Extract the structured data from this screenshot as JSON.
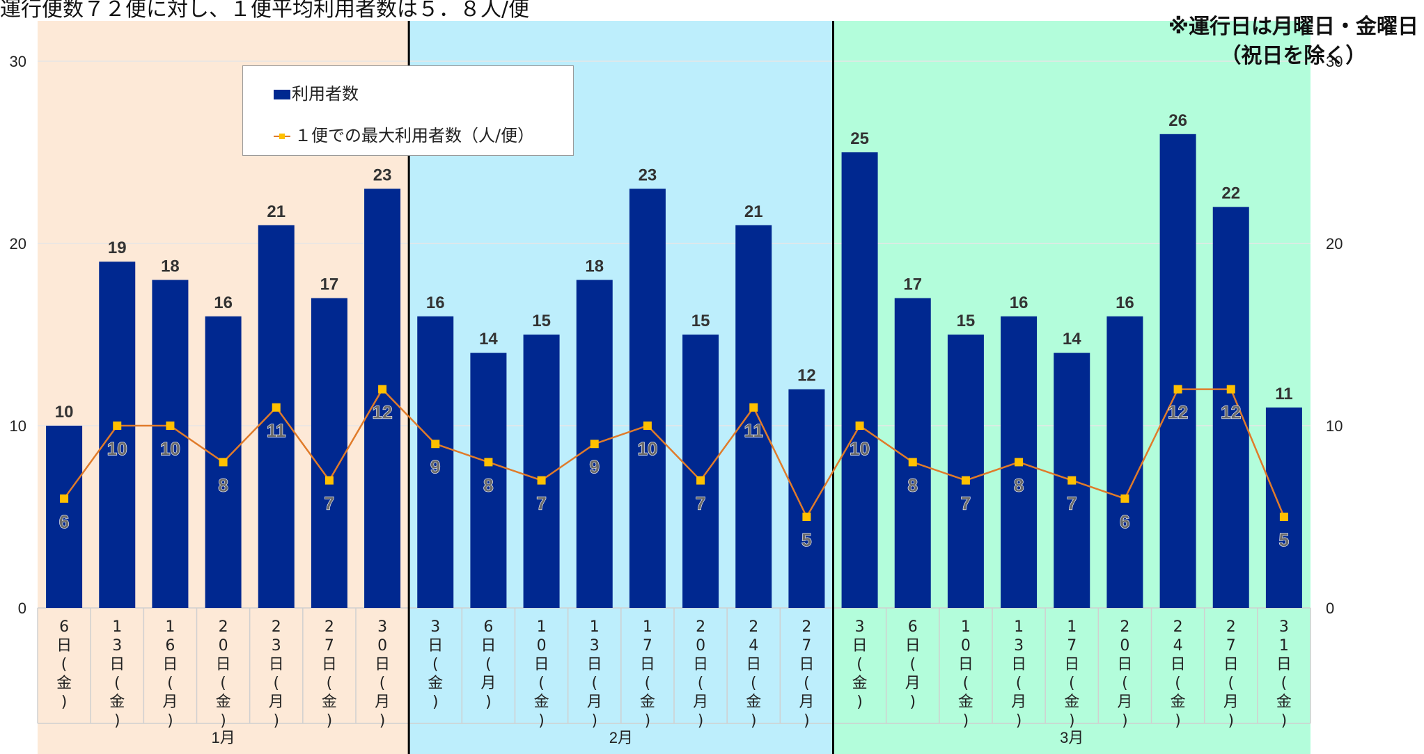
{
  "header": {
    "title": "運行便数７２便に対し、１便平均利用者数は５．８人/便",
    "note_line1": "※運行日は月曜日・金曜日",
    "note_line2": "（祝日を除く）"
  },
  "legend": {
    "bar_label": "利用者数",
    "line_label": "１便での最大利用者数（人/便）"
  },
  "colors": {
    "bar": "#002890",
    "line": "#e07b2a",
    "marker": "#ffc000",
    "month_bg": [
      "#fde9d7",
      "#bdeefc",
      "#b3fddb"
    ]
  },
  "chart_data": {
    "type": "bar",
    "title": "運行便数７２便に対し、１便平均利用者数は５．８人/便",
    "categories": [
      "6日(金)",
      "13日(金)",
      "16日(月)",
      "20日(金)",
      "23日(月)",
      "27日(金)",
      "30日(月)",
      "3日(金)",
      "6日(月)",
      "10日(金)",
      "13日(月)",
      "17日(金)",
      "20日(月)",
      "24日(金)",
      "27日(月)",
      "3日(金)",
      "6日(月)",
      "10日(金)",
      "13日(月)",
      "17日(金)",
      "20日(月)",
      "24日(金)",
      "27日(月)",
      "31日(金)"
    ],
    "months": [
      {
        "label": "1月",
        "count": 7
      },
      {
        "label": "2月",
        "count": 8
      },
      {
        "label": "3月",
        "count": 9
      }
    ],
    "series": [
      {
        "name": "利用者数",
        "type": "bar",
        "values": [
          10,
          19,
          18,
          16,
          21,
          17,
          23,
          16,
          14,
          15,
          18,
          23,
          15,
          21,
          12,
          25,
          17,
          15,
          16,
          14,
          16,
          26,
          22,
          11
        ]
      },
      {
        "name": "１便での最大利用者数（人/便）",
        "type": "line",
        "values": [
          6,
          10,
          10,
          8,
          11,
          7,
          12,
          9,
          8,
          7,
          9,
          10,
          7,
          11,
          5,
          10,
          8,
          7,
          8,
          7,
          6,
          12,
          12,
          5
        ]
      }
    ],
    "ylim": [
      0,
      30
    ],
    "yticks": [
      "0",
      "10",
      "20",
      "30"
    ],
    "y2ticks": [
      "0",
      "10",
      "20",
      "30"
    ],
    "grid": true,
    "legend_position": "top-left"
  }
}
